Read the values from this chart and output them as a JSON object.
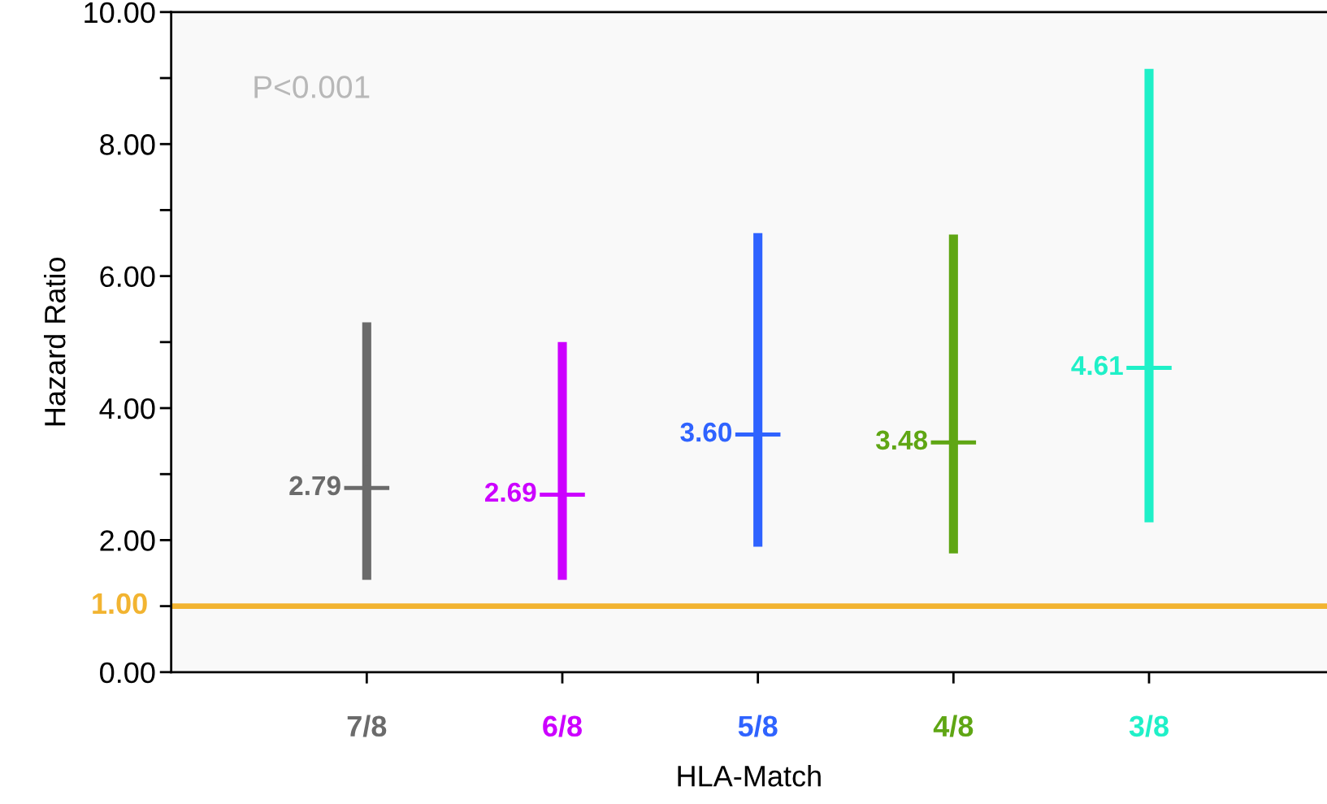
{
  "chart_data": {
    "type": "scatter",
    "ylabel": "Hazard Ratio",
    "xlabel": "HLA-Match",
    "categories": [
      "7/8",
      "6/8",
      "5/8",
      "4/8",
      "3/8"
    ],
    "values": [
      2.79,
      2.69,
      3.6,
      3.48,
      4.61
    ],
    "errors": [
      [
        1.4,
        5.3
      ],
      [
        1.4,
        5.0
      ],
      [
        1.9,
        6.65
      ],
      [
        1.8,
        6.63
      ],
      [
        2.27,
        9.14
      ]
    ],
    "colors": [
      "#6b6b6b",
      "#cc00ff",
      "#2f63ff",
      "#5fa614",
      "#1ff0c8"
    ],
    "value_labels": [
      "2.79",
      "2.69",
      "3.60",
      "3.48",
      "4.61"
    ],
    "marker": "cross",
    "ylim": [
      0,
      10
    ],
    "yticks": [
      {
        "value": 0,
        "label": "0.00"
      },
      {
        "value": 1,
        "label": null
      },
      {
        "value": 2,
        "label": "2.00"
      },
      {
        "value": 3,
        "label": null
      },
      {
        "value": 4,
        "label": "4.00"
      },
      {
        "value": 5,
        "label": null
      },
      {
        "value": 6,
        "label": "6.00"
      },
      {
        "value": 7,
        "label": null
      },
      {
        "value": 8,
        "label": "8.00"
      },
      {
        "value": 9,
        "label": null
      },
      {
        "value": 10,
        "label": "10.00"
      }
    ],
    "ref_lines": [
      {
        "axis": "y",
        "value": 1,
        "label": "1.00",
        "color": "#f2b431"
      }
    ],
    "annotations": [
      "P<0.001"
    ],
    "grid": false,
    "legend": false
  }
}
